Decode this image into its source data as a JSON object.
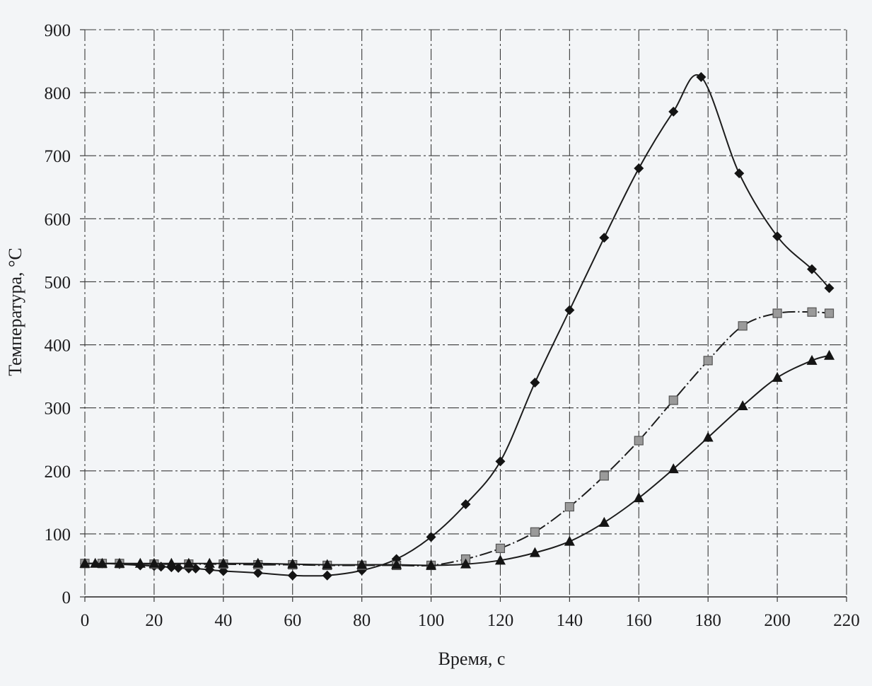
{
  "chart_data": {
    "type": "line",
    "title": "",
    "xlabel": "Время, с",
    "ylabel": "Температура, °С",
    "xlim": [
      0,
      220
    ],
    "ylim": [
      0,
      900
    ],
    "x_ticks": [
      "0",
      "20",
      "40",
      "60",
      "80",
      "100",
      "120",
      "140",
      "160",
      "180",
      "200",
      "220"
    ],
    "y_ticks": [
      "0",
      "100",
      "200",
      "300",
      "400",
      "500",
      "600",
      "700",
      "800",
      "900"
    ],
    "grid": true,
    "legend": "none",
    "colors": {
      "line": "#1c1c1c",
      "grid": "#3a3a3a",
      "square_fill": "#9a9a9a",
      "background": "#f3f5f7"
    },
    "series": [
      {
        "marker": "diamond",
        "x": [
          0,
          5,
          10,
          16,
          20,
          22,
          25,
          27,
          30,
          32,
          36,
          40,
          50,
          60,
          70,
          80,
          90,
          100,
          110,
          120,
          130,
          140,
          150,
          160,
          170,
          178,
          189,
          200,
          210,
          215
        ],
        "y": [
          53,
          53,
          52,
          50,
          49,
          48,
          47,
          46,
          45,
          45,
          43,
          41,
          38,
          34,
          34,
          42,
          60,
          95,
          147,
          215,
          340,
          455,
          570,
          680,
          770,
          825,
          672,
          572,
          520,
          490
        ]
      },
      {
        "marker": "square",
        "x": [
          0,
          5,
          10,
          20,
          30,
          40,
          50,
          60,
          70,
          80,
          90,
          100,
          110,
          120,
          130,
          140,
          150,
          160,
          170,
          180,
          190,
          200,
          210,
          215
        ],
        "y": [
          53,
          53,
          53,
          52,
          52,
          52,
          51,
          51,
          50,
          50,
          50,
          50,
          60,
          77,
          103,
          143,
          192,
          248,
          312,
          375,
          430,
          450,
          452,
          450
        ]
      },
      {
        "marker": "triangle",
        "x": [
          0,
          3,
          5,
          10,
          16,
          20,
          25,
          30,
          36,
          40,
          50,
          60,
          70,
          80,
          90,
          100,
          110,
          120,
          130,
          140,
          150,
          160,
          170,
          180,
          190,
          200,
          210,
          215
        ],
        "y": [
          53,
          53,
          53,
          53,
          53,
          53,
          53,
          53,
          53,
          53,
          53,
          52,
          51,
          51,
          51,
          50,
          52,
          58,
          70,
          88,
          118,
          157,
          203,
          253,
          303,
          348,
          375,
          383
        ]
      }
    ]
  }
}
